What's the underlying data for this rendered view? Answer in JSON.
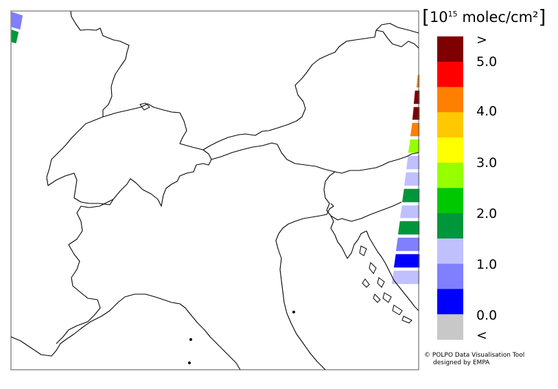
{
  "legend": {
    "unit_parts": {
      "open": "[",
      "base": "10",
      "exp": "15",
      "rest": " molec/cm²",
      "close": "]"
    },
    "bins": [
      {
        "color": "#7f0000"
      },
      {
        "color": "#ff0000"
      },
      {
        "color": "#ff8000"
      },
      {
        "color": "#ffc800"
      },
      {
        "color": "#ffff00"
      },
      {
        "color": "#96ff00"
      },
      {
        "color": "#00c800"
      },
      {
        "color": "#00963c"
      },
      {
        "color": "#c0c0ff"
      },
      {
        "color": "#8080ff"
      },
      {
        "color": "#0000ff"
      },
      {
        "color": "#c8c8c8"
      }
    ],
    "labels": [
      ">",
      "5.0",
      "4.0",
      "3.0",
      "2.0",
      "1.0",
      "0.0",
      "<"
    ]
  },
  "credit": {
    "line1": "© POLPO Data Visualisation Tool",
    "line2": "designed by EMPA"
  },
  "swath_left": [
    {
      "color": "#8080ff"
    },
    {
      "color": "#00963c"
    }
  ],
  "swath_right": [
    {
      "color": "#ff8000"
    },
    {
      "color": "#7f0000"
    },
    {
      "color": "#7f0000"
    },
    {
      "color": "#ff8000"
    },
    {
      "color": "#96ff00"
    },
    {
      "color": "#c0c0ff"
    },
    {
      "color": "#c0c0ff"
    },
    {
      "color": "#00963c"
    },
    {
      "color": "#c0c0ff"
    },
    {
      "color": "#00963c"
    },
    {
      "color": "#8080ff"
    },
    {
      "color": "#0000ff"
    },
    {
      "color": "#c0c0ff"
    }
  ]
}
